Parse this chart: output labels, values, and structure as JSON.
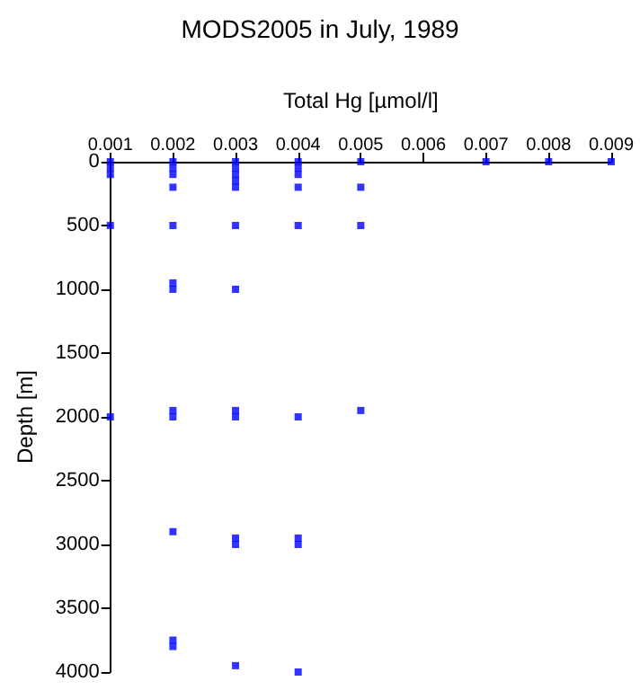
{
  "chart_data": {
    "type": "scatter",
    "title": "MODS2005 in July, 1989",
    "xlabel": "Total Hg [µmol/l]",
    "ylabel": "Depth [m]",
    "x": [
      0.001,
      0.001,
      0.001,
      0.001,
      0.001,
      0.002,
      0.002,
      0.002,
      0.002,
      0.002,
      0.002,
      0.002,
      0.002,
      0.002,
      0.002,
      0.002,
      0.002,
      0.003,
      0.003,
      0.003,
      0.003,
      0.003,
      0.003,
      0.003,
      0.003,
      0.003,
      0.003,
      0.003,
      0.003,
      0.004,
      0.004,
      0.004,
      0.004,
      0.004,
      0.004,
      0.004,
      0.004,
      0.004,
      0.005,
      0.005,
      0.005,
      0.005,
      0.007,
      0.008,
      0.009
    ],
    "values": [
      0,
      50,
      100,
      500,
      2000,
      0,
      50,
      100,
      200,
      500,
      950,
      1000,
      1950,
      2000,
      2900,
      3750,
      3800,
      0,
      50,
      100,
      150,
      200,
      500,
      1000,
      1950,
      2000,
      2950,
      3000,
      3950,
      0,
      50,
      100,
      200,
      500,
      2000,
      2950,
      3000,
      4000,
      0,
      200,
      500,
      1950,
      0,
      0,
      0
    ],
    "color": "#0000ff",
    "marker": "square",
    "xlim": [
      0.001,
      0.009
    ],
    "xticks": [
      0.001,
      0.002,
      0.003,
      0.004,
      0.005,
      0.006,
      0.007,
      0.008,
      0.009
    ],
    "ylim": [
      4000,
      0
    ],
    "yticks": [
      0,
      500,
      1000,
      1500,
      2000,
      2500,
      3000,
      3500,
      4000
    ],
    "grid": false
  }
}
